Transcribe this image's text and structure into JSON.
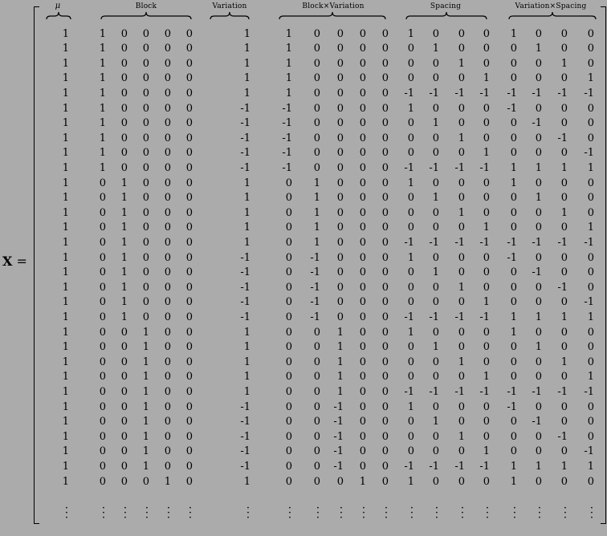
{
  "equation": {
    "lhs_symbol": "X",
    "lhs_equals": "=",
    "headers": {
      "mu": "μ",
      "block": "Block",
      "variation": "Variation",
      "block_x_variation": "Block×Variation",
      "spacing": "Spacing",
      "variation_x_spacing": "Variation×Spacing"
    },
    "continuation": "⋮",
    "rows": [
      [
        "1",
        "1",
        "0",
        "0",
        "0",
        "0",
        "1",
        "1",
        "0",
        "0",
        "0",
        "0",
        "1",
        "0",
        "0",
        "0",
        "1",
        "0",
        "0",
        "0"
      ],
      [
        "1",
        "1",
        "0",
        "0",
        "0",
        "0",
        "1",
        "1",
        "0",
        "0",
        "0",
        "0",
        "0",
        "1",
        "0",
        "0",
        "0",
        "1",
        "0",
        "0"
      ],
      [
        "1",
        "1",
        "0",
        "0",
        "0",
        "0",
        "1",
        "1",
        "0",
        "0",
        "0",
        "0",
        "0",
        "0",
        "1",
        "0",
        "0",
        "0",
        "1",
        "0"
      ],
      [
        "1",
        "1",
        "0",
        "0",
        "0",
        "0",
        "1",
        "1",
        "0",
        "0",
        "0",
        "0",
        "0",
        "0",
        "0",
        "1",
        "0",
        "0",
        "0",
        "1"
      ],
      [
        "1",
        "1",
        "0",
        "0",
        "0",
        "0",
        "1",
        "1",
        "0",
        "0",
        "0",
        "0",
        "-1",
        "-1",
        "-1",
        "-1",
        "-1",
        "-1",
        "-1",
        "-1"
      ],
      [
        "1",
        "1",
        "0",
        "0",
        "0",
        "0",
        "-1",
        "-1",
        "0",
        "0",
        "0",
        "0",
        "1",
        "0",
        "0",
        "0",
        "-1",
        "0",
        "0",
        "0"
      ],
      [
        "1",
        "1",
        "0",
        "0",
        "0",
        "0",
        "-1",
        "-1",
        "0",
        "0",
        "0",
        "0",
        "0",
        "1",
        "0",
        "0",
        "0",
        "-1",
        "0",
        "0"
      ],
      [
        "1",
        "1",
        "0",
        "0",
        "0",
        "0",
        "-1",
        "-1",
        "0",
        "0",
        "0",
        "0",
        "0",
        "0",
        "1",
        "0",
        "0",
        "0",
        "-1",
        "0"
      ],
      [
        "1",
        "1",
        "0",
        "0",
        "0",
        "0",
        "-1",
        "-1",
        "0",
        "0",
        "0",
        "0",
        "0",
        "0",
        "0",
        "1",
        "0",
        "0",
        "0",
        "-1"
      ],
      [
        "1",
        "1",
        "0",
        "0",
        "0",
        "0",
        "-1",
        "-1",
        "0",
        "0",
        "0",
        "0",
        "-1",
        "-1",
        "-1",
        "-1",
        "1",
        "1",
        "1",
        "1"
      ],
      [
        "1",
        "0",
        "1",
        "0",
        "0",
        "0",
        "1",
        "0",
        "1",
        "0",
        "0",
        "0",
        "1",
        "0",
        "0",
        "0",
        "1",
        "0",
        "0",
        "0"
      ],
      [
        "1",
        "0",
        "1",
        "0",
        "0",
        "0",
        "1",
        "0",
        "1",
        "0",
        "0",
        "0",
        "0",
        "1",
        "0",
        "0",
        "0",
        "1",
        "0",
        "0"
      ],
      [
        "1",
        "0",
        "1",
        "0",
        "0",
        "0",
        "1",
        "0",
        "1",
        "0",
        "0",
        "0",
        "0",
        "0",
        "1",
        "0",
        "0",
        "0",
        "1",
        "0"
      ],
      [
        "1",
        "0",
        "1",
        "0",
        "0",
        "0",
        "1",
        "0",
        "1",
        "0",
        "0",
        "0",
        "0",
        "0",
        "0",
        "1",
        "0",
        "0",
        "0",
        "1"
      ],
      [
        "1",
        "0",
        "1",
        "0",
        "0",
        "0",
        "1",
        "0",
        "1",
        "0",
        "0",
        "0",
        "-1",
        "-1",
        "-1",
        "-1",
        "-1",
        "-1",
        "-1",
        "-1"
      ],
      [
        "1",
        "0",
        "1",
        "0",
        "0",
        "0",
        "-1",
        "0",
        "-1",
        "0",
        "0",
        "0",
        "1",
        "0",
        "0",
        "0",
        "-1",
        "0",
        "0",
        "0"
      ],
      [
        "1",
        "0",
        "1",
        "0",
        "0",
        "0",
        "-1",
        "0",
        "-1",
        "0",
        "0",
        "0",
        "0",
        "1",
        "0",
        "0",
        "0",
        "-1",
        "0",
        "0"
      ],
      [
        "1",
        "0",
        "1",
        "0",
        "0",
        "0",
        "-1",
        "0",
        "-1",
        "0",
        "0",
        "0",
        "0",
        "0",
        "1",
        "0",
        "0",
        "0",
        "-1",
        "0"
      ],
      [
        "1",
        "0",
        "1",
        "0",
        "0",
        "0",
        "-1",
        "0",
        "-1",
        "0",
        "0",
        "0",
        "0",
        "0",
        "0",
        "1",
        "0",
        "0",
        "0",
        "-1"
      ],
      [
        "1",
        "0",
        "1",
        "0",
        "0",
        "0",
        "-1",
        "0",
        "-1",
        "0",
        "0",
        "0",
        "-1",
        "-1",
        "-1",
        "-1",
        "1",
        "1",
        "1",
        "1"
      ],
      [
        "1",
        "0",
        "0",
        "1",
        "0",
        "0",
        "1",
        "0",
        "0",
        "1",
        "0",
        "0",
        "1",
        "0",
        "0",
        "0",
        "1",
        "0",
        "0",
        "0"
      ],
      [
        "1",
        "0",
        "0",
        "1",
        "0",
        "0",
        "1",
        "0",
        "0",
        "1",
        "0",
        "0",
        "0",
        "1",
        "0",
        "0",
        "0",
        "1",
        "0",
        "0"
      ],
      [
        "1",
        "0",
        "0",
        "1",
        "0",
        "0",
        "1",
        "0",
        "0",
        "1",
        "0",
        "0",
        "0",
        "0",
        "1",
        "0",
        "0",
        "0",
        "1",
        "0"
      ],
      [
        "1",
        "0",
        "0",
        "1",
        "0",
        "0",
        "1",
        "0",
        "0",
        "1",
        "0",
        "0",
        "0",
        "0",
        "0",
        "1",
        "0",
        "0",
        "0",
        "1"
      ],
      [
        "1",
        "0",
        "0",
        "1",
        "0",
        "0",
        "1",
        "0",
        "0",
        "1",
        "0",
        "0",
        "-1",
        "-1",
        "-1",
        "-1",
        "-1",
        "-1",
        "-1",
        "-1"
      ],
      [
        "1",
        "0",
        "0",
        "1",
        "0",
        "0",
        "-1",
        "0",
        "0",
        "-1",
        "0",
        "0",
        "1",
        "0",
        "0",
        "0",
        "-1",
        "0",
        "0",
        "0"
      ],
      [
        "1",
        "0",
        "0",
        "1",
        "0",
        "0",
        "-1",
        "0",
        "0",
        "-1",
        "0",
        "0",
        "0",
        "1",
        "0",
        "0",
        "0",
        "-1",
        "0",
        "0"
      ],
      [
        "1",
        "0",
        "0",
        "1",
        "0",
        "0",
        "-1",
        "0",
        "0",
        "-1",
        "0",
        "0",
        "0",
        "0",
        "1",
        "0",
        "0",
        "0",
        "-1",
        "0"
      ],
      [
        "1",
        "0",
        "0",
        "1",
        "0",
        "0",
        "-1",
        "0",
        "0",
        "-1",
        "0",
        "0",
        "0",
        "0",
        "0",
        "1",
        "0",
        "0",
        "0",
        "-1"
      ],
      [
        "1",
        "0",
        "0",
        "1",
        "0",
        "0",
        "-1",
        "0",
        "0",
        "-1",
        "0",
        "0",
        "-1",
        "-1",
        "-1",
        "-1",
        "1",
        "1",
        "1",
        "1"
      ],
      [
        "1",
        "0",
        "0",
        "0",
        "1",
        "0",
        "1",
        "0",
        "0",
        "0",
        "1",
        "0",
        "1",
        "0",
        "0",
        "0",
        "1",
        "0",
        "0",
        "0"
      ]
    ]
  }
}
